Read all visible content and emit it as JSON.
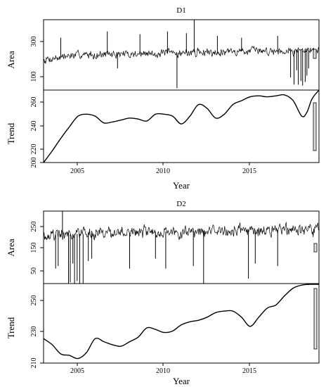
{
  "figure": {
    "x_axis_label": "Year"
  },
  "chart_data": [
    {
      "type": "line",
      "title": "D1",
      "xlabel": "Year",
      "x_tick_labels": [
        "2005",
        "2010",
        "2015"
      ],
      "xlim": [
        2003.0,
        2019.0
      ],
      "panels": [
        {
          "name": "area",
          "ylabel": "Area",
          "ylim": [
            30,
            420
          ],
          "y_ticks": [
            100,
            300
          ],
          "y_tick_labels": [
            "100",
            "300"
          ],
          "series": [
            {
              "name": "",
              "baseline": [
                [
                  2003.0,
                  200
                ],
                [
                  2005.0,
                  225
                ],
                [
                  2008.0,
                  230
                ],
                [
                  2010.0,
                  233
                ],
                [
                  2012.0,
                  240
                ],
                [
                  2014.0,
                  245
                ],
                [
                  2016.0,
                  248
                ],
                [
                  2019.0,
                  250
                ]
              ],
              "noise_amplitude": 28,
              "spikes": [
                [
                  2004.0,
                  320
                ],
                [
                  2006.7,
                  355
                ],
                [
                  2007.3,
                  150
                ],
                [
                  2008.6,
                  340
                ],
                [
                  2010.2,
                  355
                ],
                [
                  2010.75,
                  40
                ],
                [
                  2011.3,
                  345
                ],
                [
                  2011.75,
                  420
                ],
                [
                  2013.1,
                  330
                ],
                [
                  2014.5,
                  320
                ],
                [
                  2016.6,
                  330
                ],
                [
                  2017.35,
                  100
                ],
                [
                  2017.55,
                  60
                ],
                [
                  2017.7,
                  140
                ],
                [
                  2017.8,
                  60
                ],
                [
                  2017.95,
                  80
                ],
                [
                  2018.05,
                  55
                ],
                [
                  2018.2,
                  75
                ],
                [
                  2018.3,
                  110
                ],
                [
                  2018.4,
                  150
                ]
              ]
            }
          ]
        },
        {
          "name": "trend",
          "ylabel": "Trend",
          "ylim": [
            200,
            275
          ],
          "y_ticks": [
            200,
            220,
            240,
            260
          ],
          "y_tick_labels": [
            "200",
            "220",
            "240",
            "260"
          ],
          "series": [
            {
              "name": "",
              "x": [
                2003.0,
                2003.5,
                2004.0,
                2004.5,
                2005.0,
                2005.5,
                2006.0,
                2006.5,
                2007.0,
                2007.5,
                2008.0,
                2008.5,
                2009.0,
                2009.5,
                2010.0,
                2010.5,
                2011.0,
                2011.5,
                2012.0,
                2012.5,
                2013.0,
                2013.5,
                2014.0,
                2014.5,
                2015.0,
                2015.5,
                2016.0,
                2016.5,
                2017.0,
                2017.5,
                2018.0,
                2018.3,
                2018.6,
                2019.0
              ],
              "y": [
                200.0,
                212.0,
                225.0,
                237.0,
                248.0,
                250.0,
                248.0,
                241.0,
                242.0,
                244.0,
                246.0,
                245.0,
                243.0,
                250.0,
                250.0,
                248.0,
                240.0,
                248.0,
                260.0,
                256.0,
                246.0,
                250.0,
                260.0,
                264.0,
                268.0,
                269.0,
                268.0,
                269.0,
                270.0,
                264.0,
                248.0,
                252.0,
                266.0,
                275.0
              ]
            }
          ]
        }
      ]
    },
    {
      "type": "line",
      "title": "D2",
      "xlabel": "Year",
      "x_tick_labels": [
        "2005",
        "2010",
        "2015"
      ],
      "xlim": [
        2003.0,
        2019.0
      ],
      "panels": [
        {
          "name": "area",
          "ylabel": "Area",
          "ylim": [
            20,
            310
          ],
          "y_ticks": [
            50,
            150,
            250
          ],
          "y_tick_labels": [
            "50",
            "150",
            "250"
          ],
          "series": [
            {
              "name": "",
              "baseline": [
                [
                  2003.0,
                  215
                ],
                [
                  2006.0,
                  220
                ],
                [
                  2010.0,
                  228
                ],
                [
                  2014.0,
                  232
                ],
                [
                  2019.0,
                  235
                ]
              ],
              "noise_amplitude": 30,
              "spikes": [
                [
                  2003.7,
                  80
                ],
                [
                  2003.85,
                  90
                ],
                [
                  2004.1,
                  310
                ],
                [
                  2004.45,
                  20
                ],
                [
                  2004.55,
                  25
                ],
                [
                  2004.7,
                  100
                ],
                [
                  2004.8,
                  20
                ],
                [
                  2004.95,
                  30
                ],
                [
                  2005.1,
                  20
                ],
                [
                  2005.3,
                  20
                ],
                [
                  2005.6,
                  110
                ],
                [
                  2005.8,
                  120
                ],
                [
                  2008.0,
                  80
                ],
                [
                  2009.5,
                  120
                ],
                [
                  2010.1,
                  80
                ],
                [
                  2011.7,
                  90
                ],
                [
                  2012.3,
                  20
                ],
                [
                  2014.9,
                  40
                ],
                [
                  2015.3,
                  100
                ],
                [
                  2016.6,
                  90
                ]
              ]
            }
          ]
        },
        {
          "name": "trend",
          "ylabel": "Trend",
          "ylim": [
            210,
            262
          ],
          "y_ticks": [
            210,
            230,
            250
          ],
          "y_tick_labels": [
            "210",
            "230",
            "250"
          ],
          "series": [
            {
              "name": "",
              "x": [
                2003.0,
                2003.5,
                2004.0,
                2004.5,
                2005.0,
                2005.5,
                2006.0,
                2006.5,
                2007.0,
                2007.5,
                2008.0,
                2008.5,
                2009.0,
                2009.5,
                2010.0,
                2010.5,
                2011.0,
                2011.5,
                2012.0,
                2012.5,
                2013.0,
                2013.5,
                2014.0,
                2014.5,
                2015.0,
                2015.5,
                2016.0,
                2016.5,
                2017.0,
                2017.5,
                2018.0,
                2018.5,
                2019.0
              ],
              "y": [
                226.0,
                222.0,
                216.0,
                215.0,
                213.0,
                217.0,
                226.0,
                224.0,
                222.0,
                221.0,
                224.0,
                227.0,
                233.0,
                232.0,
                230.0,
                231.0,
                235.0,
                237.0,
                238.0,
                240.0,
                243.0,
                244.0,
                244.0,
                240.0,
                234.0,
                240.0,
                246.0,
                248.0,
                254.0,
                259.0,
                261.0,
                261.5,
                261.5
              ]
            }
          ]
        }
      ]
    }
  ]
}
